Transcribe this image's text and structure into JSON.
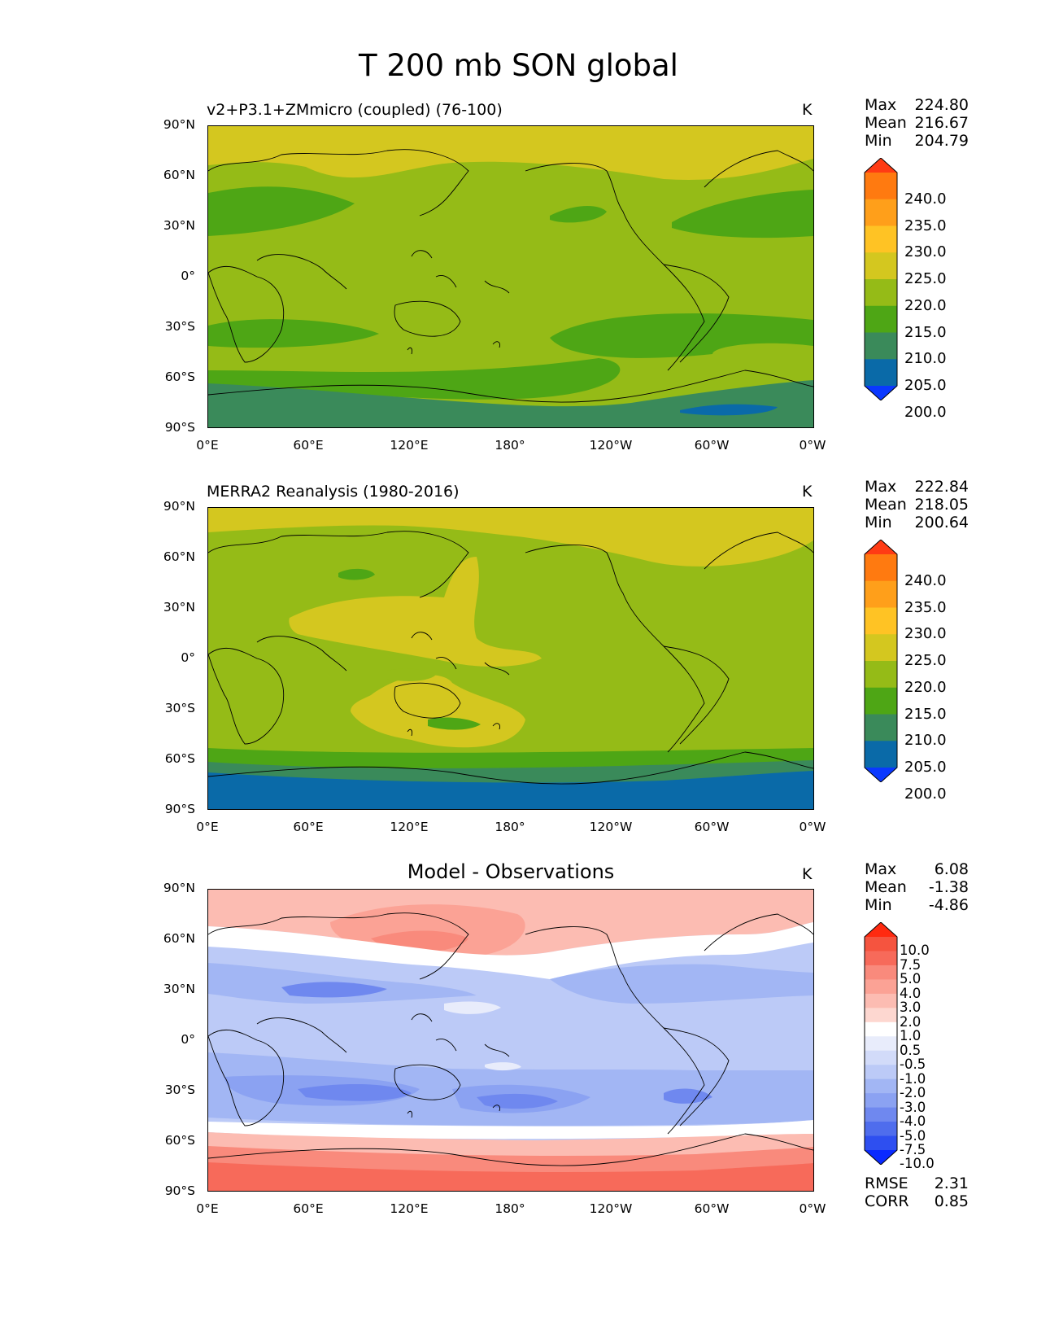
{
  "suptitle": "T 200 mb SON global",
  "lat_ticks": [
    "90°N",
    "60°N",
    "30°N",
    "0°",
    "30°S",
    "60°S",
    "90°S"
  ],
  "lon_ticks": [
    "0°E",
    "60°E",
    "120°E",
    "180°",
    "120°W",
    "60°W",
    "0°W"
  ],
  "panels": [
    {
      "title": "v2+P3.1+ZMmicro (coupled) (76-100)",
      "units": "K",
      "stats": [
        {
          "label": "Max",
          "value": "224.80"
        },
        {
          "label": "Mean",
          "value": "216.67"
        },
        {
          "label": "Min",
          "value": "204.79"
        }
      ],
      "colorbar": {
        "labels": [
          "240.0",
          "235.0",
          "230.0",
          "225.0",
          "220.0",
          "215.0",
          "210.0",
          "205.0",
          "200.0"
        ],
        "colors": [
          "#ff3b14",
          "#ff7a10",
          "#ff9f1a",
          "#ffc324",
          "#d4c71f",
          "#95bb17",
          "#4ea615",
          "#3a8a5a",
          "#0a6aa8",
          "#0a38ff"
        ]
      }
    },
    {
      "title": "MERRA2 Reanalysis (1980-2016)",
      "units": "K",
      "stats": [
        {
          "label": "Max",
          "value": "222.84"
        },
        {
          "label": "Mean",
          "value": "218.05"
        },
        {
          "label": "Min",
          "value": "200.64"
        }
      ],
      "colorbar": {
        "labels": [
          "240.0",
          "235.0",
          "230.0",
          "225.0",
          "220.0",
          "215.0",
          "210.0",
          "205.0",
          "200.0"
        ],
        "colors": [
          "#ff3b14",
          "#ff7a10",
          "#ff9f1a",
          "#ffc324",
          "#d4c71f",
          "#95bb17",
          "#4ea615",
          "#3a8a5a",
          "#0a6aa8",
          "#0a38ff"
        ]
      }
    },
    {
      "title": "Model - Observations",
      "units": "K",
      "stats": [
        {
          "label": "Max",
          "value": "6.08"
        },
        {
          "label": "Mean",
          "value": "-1.38"
        },
        {
          "label": "Min",
          "value": "-4.86"
        }
      ],
      "colorbar": {
        "labels": [
          "10.0",
          "7.5",
          "5.0",
          "4.0",
          "3.0",
          "2.0",
          "1.0",
          "0.5",
          "-0.5",
          "-1.0",
          "-2.0",
          "-3.0",
          "-4.0",
          "-5.0",
          "-7.5",
          "-10.0"
        ],
        "colors": [
          "#ff2a10",
          "#f5543f",
          "#f76a5a",
          "#f98a7c",
          "#fba295",
          "#fcbcb2",
          "#fdd7d0",
          "#ffffff",
          "#e8ecfb",
          "#d2dbf9",
          "#bccaf7",
          "#a2b6f4",
          "#8ba2f2",
          "#6f88ef",
          "#4f6ded",
          "#2e4ff0",
          "#0a2aff"
        ]
      },
      "rmse_label": "RMSE",
      "rmse_value": "2.31",
      "corr_label": "CORR",
      "corr_value": "0.85"
    }
  ]
}
